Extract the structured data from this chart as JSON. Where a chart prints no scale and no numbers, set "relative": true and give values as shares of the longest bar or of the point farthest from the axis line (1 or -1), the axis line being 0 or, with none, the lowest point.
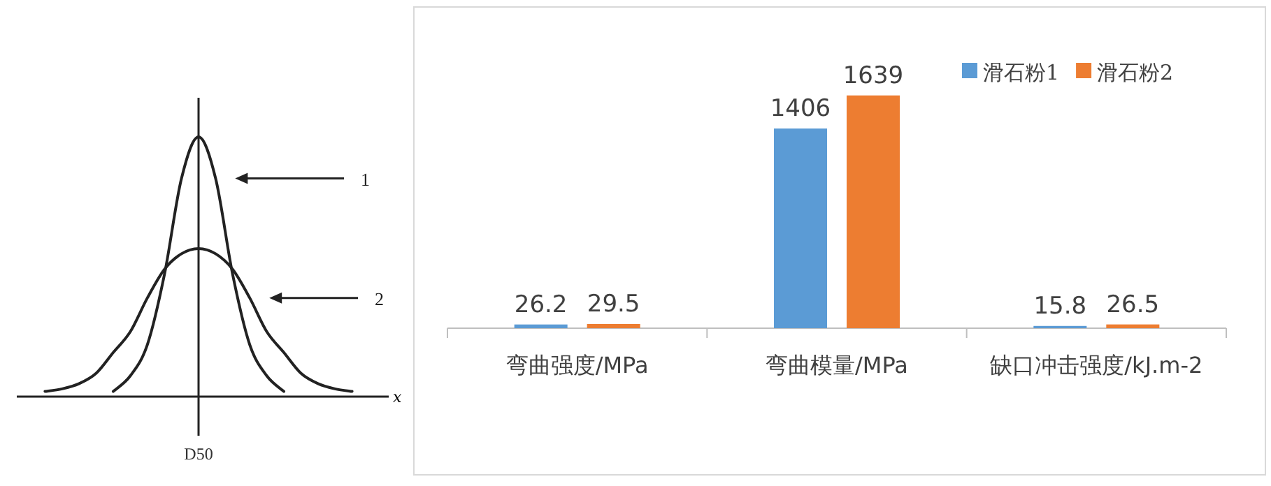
{
  "chart_data": [
    {
      "type": "line",
      "relative": true,
      "xlabel": "x",
      "marker": "none",
      "line_style": "solid",
      "annotations": [
        "D50"
      ],
      "categories": [
        null,
        null,
        null,
        null,
        null,
        null,
        null,
        null,
        null,
        null,
        null,
        null,
        null,
        null,
        null,
        null,
        null,
        null,
        null,
        null,
        null
      ],
      "series": [
        {
          "name": "1",
          "color": "#222222",
          "values": [
            null,
            null,
            null,
            null,
            null,
            0.02,
            0.08,
            0.2,
            0.47,
            0.84,
            1,
            0.84,
            0.47,
            0.2,
            0.08,
            0.02,
            null,
            null,
            null,
            null,
            null
          ]
        },
        {
          "name": "2",
          "color": "#222222",
          "values": [
            null,
            0.02,
            0.03,
            0.05,
            0.09,
            0.17,
            0.25,
            0.38,
            0.49,
            0.55,
            0.57,
            0.55,
            0.49,
            0.38,
            0.25,
            0.17,
            0.09,
            0.05,
            0.03,
            0.02,
            null
          ]
        }
      ]
    },
    {
      "type": "bar",
      "data_labels": true,
      "legend": "top right",
      "categories": [
        "弯曲强度/MPa",
        "弯曲模量/MPa",
        "缺口冲击强度/kJ.m-2"
      ],
      "series": [
        {
          "name": "滑石粉1",
          "color": "#5b9bd5",
          "values": [
            26.2,
            1406,
            15.8
          ]
        },
        {
          "name": "滑石粉2",
          "color": "#ed7d31",
          "values": [
            29.5,
            1639,
            26.5
          ]
        }
      ]
    }
  ]
}
